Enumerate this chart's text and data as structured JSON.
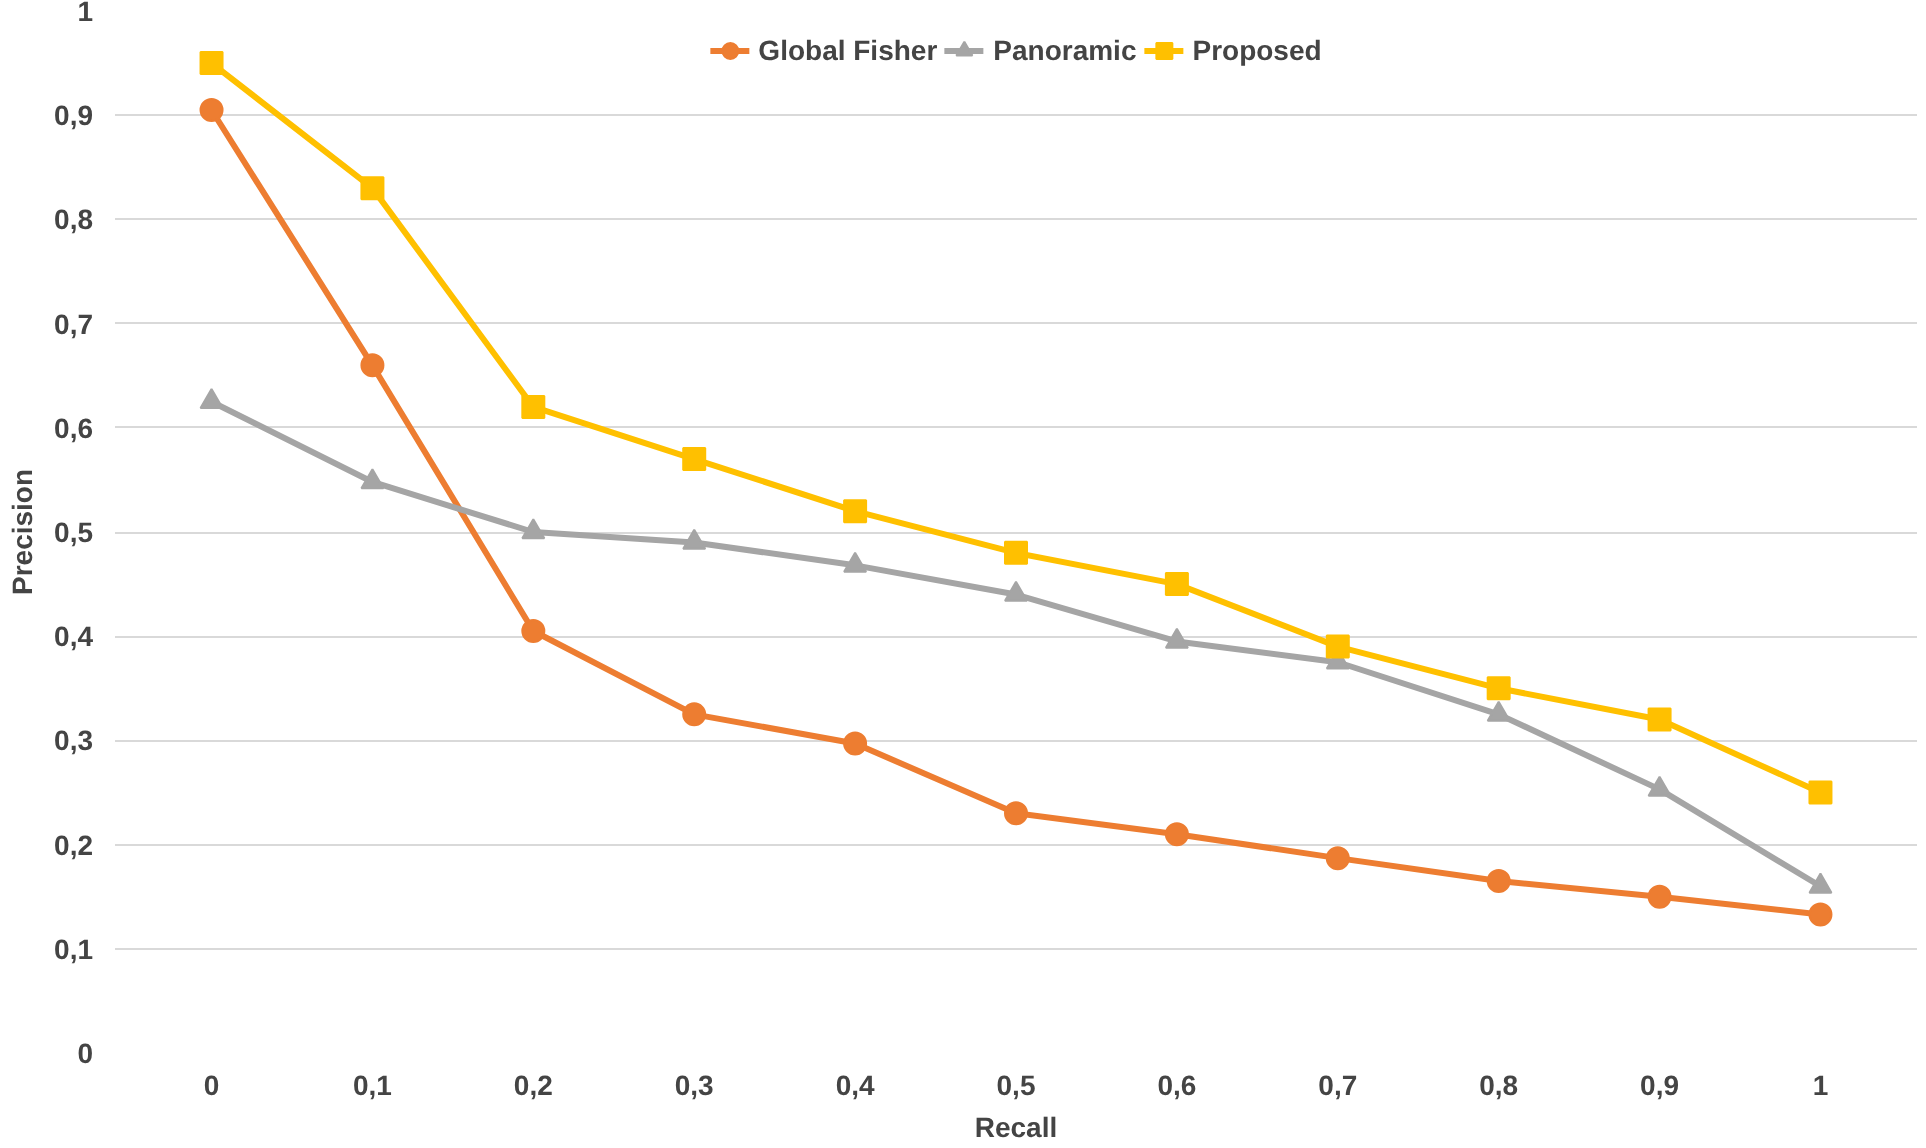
{
  "chart_data": {
    "type": "line",
    "xlabel": "Recall",
    "ylabel": "Precision",
    "categories": [
      "0",
      "0,1",
      "0,2",
      "0,3",
      "0,4",
      "0,5",
      "0,6",
      "0,7",
      "0,8",
      "0,9",
      "1"
    ],
    "series": [
      {
        "name": "Global Fisher",
        "color": "#ed7d31",
        "marker": "circle",
        "values": [
          0.905,
          0.66,
          0.405,
          0.325,
          0.297,
          0.23,
          0.21,
          0.187,
          0.165,
          0.15,
          0.133
        ]
      },
      {
        "name": "Panoramic",
        "color": "#a5a5a5",
        "marker": "triangle",
        "values": [
          0.625,
          0.548,
          0.5,
          0.49,
          0.468,
          0.44,
          0.395,
          0.375,
          0.325,
          0.253,
          0.16
        ]
      },
      {
        "name": "Proposed",
        "color": "#ffc000",
        "marker": "square",
        "values": [
          0.95,
          0.83,
          0.62,
          0.57,
          0.52,
          0.48,
          0.45,
          0.39,
          0.35,
          0.32,
          0.25
        ]
      }
    ],
    "ylim": [
      0,
      1
    ],
    "yticks": [
      0,
      {
        "value": 0.1,
        "label": "0,1"
      },
      {
        "value": 0.2,
        "label": "0,2"
      },
      {
        "value": 0.3,
        "label": "0,3"
      },
      {
        "value": 0.4,
        "label": "0,4"
      },
      {
        "value": 0.5,
        "label": "0,5"
      },
      {
        "value": 0.6,
        "label": "0,6"
      },
      {
        "value": 0.7,
        "label": "0,7"
      },
      {
        "value": 0.8,
        "label": "0,8"
      },
      {
        "value": 0.9,
        "label": "0,9"
      },
      1
    ],
    "grid": "y",
    "legend": "top",
    "line_style": "solid"
  }
}
